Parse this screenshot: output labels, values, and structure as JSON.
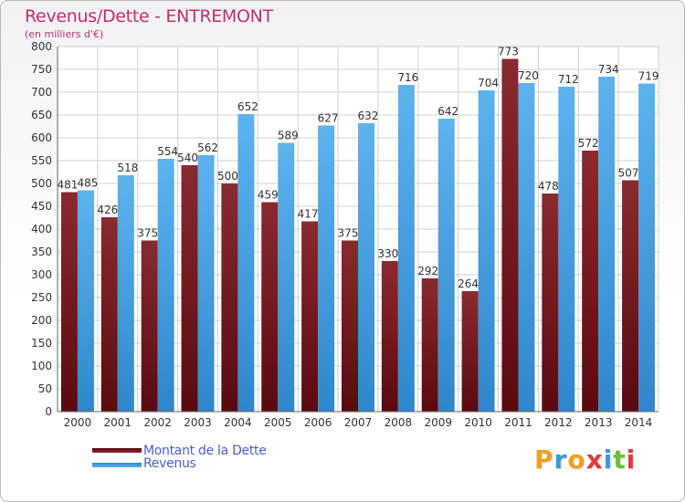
{
  "chart_data": {
    "type": "bar",
    "title": "Revenus/Dette - ENTREMONT",
    "subtitle": "(en milliers d'€)",
    "categories": [
      "2000",
      "2001",
      "2002",
      "2003",
      "2004",
      "2005",
      "2006",
      "2007",
      "2008",
      "2009",
      "2010",
      "2011",
      "2012",
      "2013",
      "2014"
    ],
    "series": [
      {
        "name": "Montant de la Dette",
        "values": [
          481,
          426,
          375,
          540,
          500,
          459,
          417,
          375,
          330,
          292,
          264,
          773,
          478,
          572,
          507
        ],
        "color": "#7a1f24"
      },
      {
        "name": "Revenus",
        "values": [
          485,
          518,
          554,
          562,
          652,
          589,
          627,
          632,
          716,
          642,
          704,
          720,
          712,
          734,
          719
        ],
        "color": "#4fa8e8"
      }
    ],
    "yticks": [
      0,
      50,
      100,
      150,
      200,
      250,
      300,
      350,
      400,
      450,
      500,
      550,
      600,
      650,
      700,
      750,
      800
    ],
    "ylim": [
      0,
      800
    ],
    "grid": true,
    "legend_position": "bottom-left"
  },
  "legend": {
    "debt_label": "Montant de la Dette",
    "revenue_label": "Revenus"
  },
  "logo": {
    "letters": [
      "P",
      "r",
      "o",
      "x",
      "i",
      "t",
      "i"
    ],
    "colors": [
      "#f0a020",
      "#3a9ad9",
      "#f0a020",
      "#e03c3c",
      "#3a9ad9",
      "#6cbf3a",
      "#e03c3c"
    ]
  }
}
